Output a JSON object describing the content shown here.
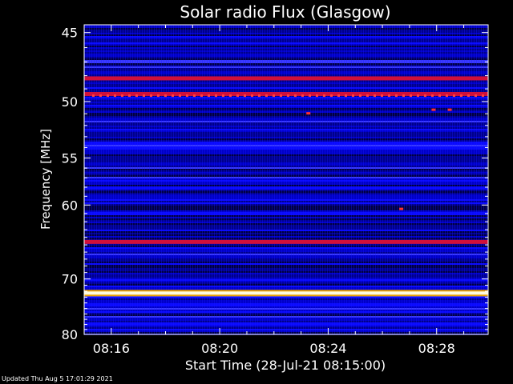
{
  "chart_data": {
    "type": "heatmap",
    "title": "Solar radio Flux (Glasgow)",
    "xlabel": "Start Time (28-Jul-21 08:15:00)",
    "ylabel": "Frequency [MHz]",
    "x_tick_labels": [
      "08:16",
      "08:20",
      "08:24",
      "08:28"
    ],
    "x_tick_minutes": [
      1,
      5,
      9,
      13
    ],
    "xlim_minutes": [
      0,
      14.9
    ],
    "y_tick_labels": [
      "45",
      "50",
      "55",
      "60",
      "70",
      "80"
    ],
    "y_tick_values": [
      45,
      50,
      55,
      60,
      70,
      80
    ],
    "ylim": [
      44.5,
      80
    ],
    "y_scale": "reciprocal",
    "colorscale": "blue-red-yellow-white",
    "features": [
      {
        "label": "strong emission band",
        "frequency": 72.3,
        "level": "white"
      },
      {
        "label": "emission band",
        "frequency": 64.6,
        "level": "red"
      },
      {
        "label": "emission band",
        "frequency": 48.2,
        "level": "red"
      },
      {
        "label": "emission band",
        "frequency": 49.4,
        "level": "red"
      }
    ]
  },
  "footer": "Updated Thu Aug  5 17:01:29 2021"
}
